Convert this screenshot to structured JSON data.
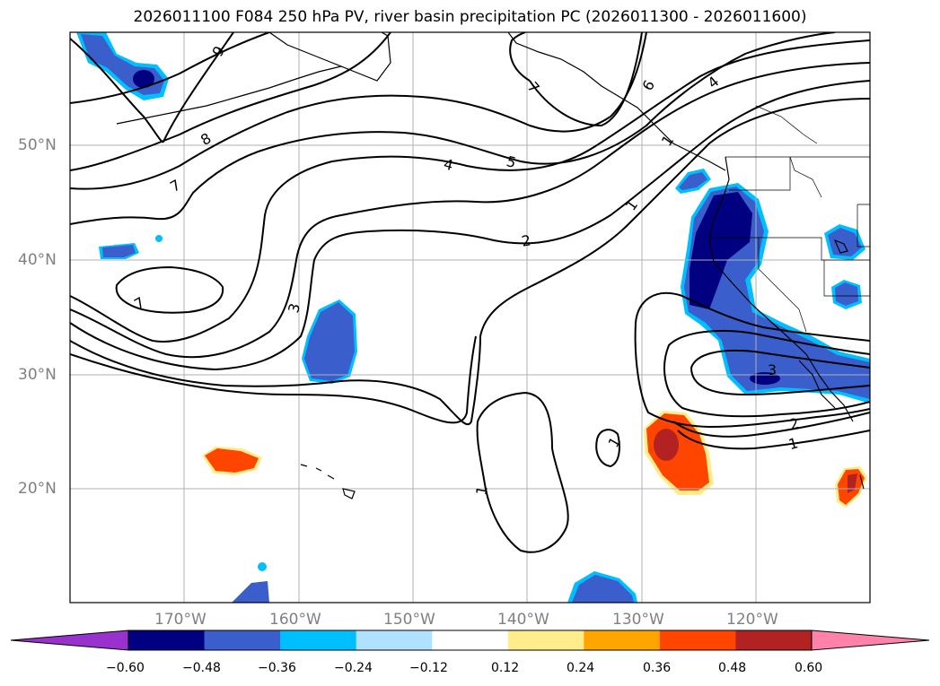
{
  "title": "2026011100 F084 250 hPa PV, river basin precipitation PC (2026011300 - 2026011600)",
  "lat_labels": [
    "50°N",
    "40°N",
    "30°N",
    "20°N"
  ],
  "lon_labels": [
    "170°W",
    "160°W",
    "150°W",
    "140°W",
    "130°W",
    "120°W"
  ],
  "contour_labels": [
    "9",
    "8",
    "7",
    "7",
    "6",
    "7",
    "5",
    "4",
    "3",
    "2",
    "1",
    "1",
    "1",
    "1",
    "4",
    "3",
    "2",
    "1"
  ],
  "colorbar": {
    "ticks": [
      "−0.60",
      "−0.48",
      "−0.36",
      "−0.24",
      "−0.12",
      "0.12",
      "0.24",
      "0.36",
      "0.48",
      "0.60"
    ],
    "colors": [
      "#9932cc",
      "#000080",
      "#3a5fcd",
      "#00bfff",
      "#b0e2ff",
      "#ffffff",
      "#ffec8b",
      "#ffa500",
      "#ff4500",
      "#b22222",
      "#ff82ab"
    ]
  }
}
